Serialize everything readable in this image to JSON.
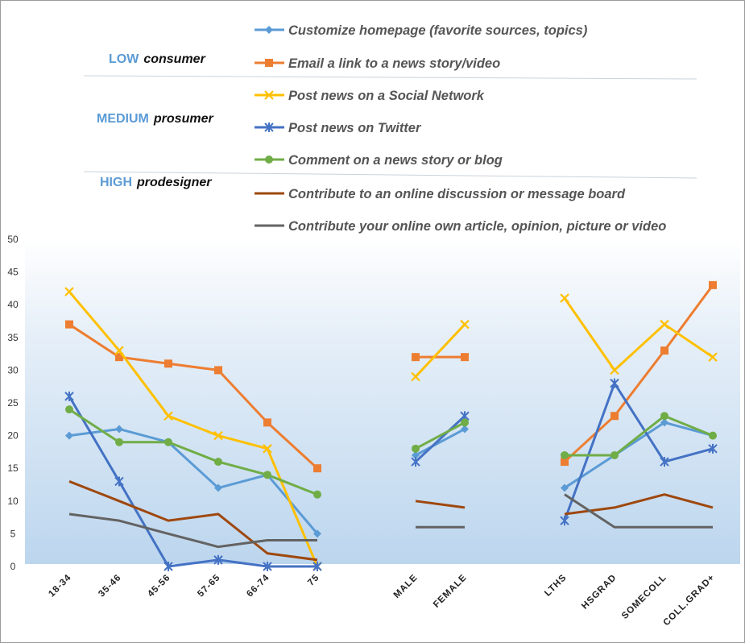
{
  "chart_data": {
    "type": "line",
    "ylim": [
      0,
      50
    ],
    "yticks": [
      0,
      5,
      10,
      15,
      20,
      25,
      30,
      35,
      40,
      45,
      50
    ],
    "groups": [
      [
        "18-34",
        "35-46",
        "45-56",
        "57-65",
        "66-74",
        "75"
      ],
      [
        "MALE",
        "FEMALE"
      ],
      [
        "LTHS",
        "HSGRAD",
        "SOMECOLL",
        "COLL.GRAD+"
      ]
    ],
    "categories": [
      "18-34",
      "35-46",
      "45-56",
      "57-65",
      "66-74",
      "75",
      "MALE",
      "FEMALE",
      "LTHS",
      "HSGRAD",
      "SOMECOLL",
      "COLL.GRAD+"
    ],
    "tiers": [
      {
        "level": "LOW",
        "role": "consumer"
      },
      {
        "level": "MEDIUM",
        "role": "prosumer"
      },
      {
        "level": "HIGH",
        "role": "prodesigner"
      }
    ],
    "series": [
      {
        "name": "Customize  homepage (favorite sources, topics)",
        "color": "#5b9bd5",
        "marker": "diamond",
        "values": [
          20,
          21,
          19,
          12,
          14,
          5,
          17,
          21,
          12,
          17,
          22,
          20
        ]
      },
      {
        "name": "Email a link to a news story/video",
        "color": "#ed7d31",
        "marker": "square",
        "values": [
          37,
          32,
          31,
          30,
          22,
          15,
          32,
          32,
          16,
          23,
          33,
          43
        ]
      },
      {
        "name": "Post news on a Social Network",
        "color": "#ffc000",
        "marker": "x",
        "values": [
          42,
          33,
          23,
          20,
          18,
          0,
          29,
          37,
          41,
          30,
          37,
          32
        ]
      },
      {
        "name": "Post news on Twitter",
        "color": "#4472c4",
        "marker": "star",
        "values": [
          26,
          13,
          0,
          1,
          0,
          0,
          16,
          23,
          7,
          28,
          16,
          18
        ]
      },
      {
        "name": "Comment on a news story or blog",
        "color": "#70ad47",
        "marker": "circle",
        "values": [
          24,
          19,
          19,
          16,
          14,
          11,
          18,
          22,
          17,
          17,
          23,
          20
        ]
      },
      {
        "name": "Contribute to an online discussion or message board",
        "color": "#9e480e",
        "marker": "none",
        "values": [
          13,
          10,
          7,
          8,
          2,
          1,
          10,
          9,
          8,
          9,
          11,
          9
        ]
      },
      {
        "name": "Contribute your online own article, opinion, picture or video",
        "color": "#636363",
        "marker": "none",
        "values": [
          8,
          7,
          5,
          3,
          4,
          4,
          6,
          6,
          11,
          6,
          6,
          6
        ]
      }
    ]
  },
  "colors": {
    "tier_level": "#5b9bd5",
    "axis_text": "#333333"
  }
}
